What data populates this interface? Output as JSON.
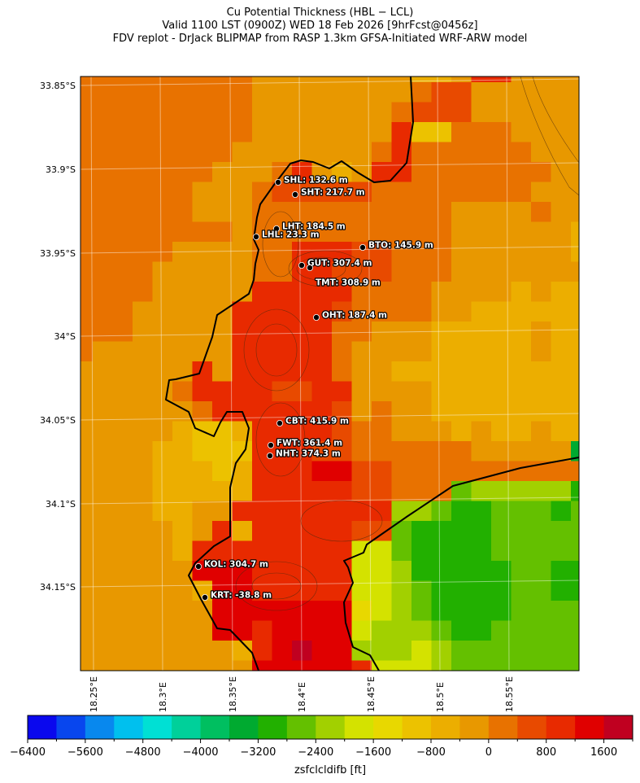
{
  "title": {
    "line1": "Cu Potential Thickness (HBL − LCL)",
    "line2": "Valid 1100 LST (0900Z) WED 18 Feb 2026 [9hrFcst@0456z]",
    "line3": "FDV replot - DrJack BLIPMAP from RASP 1.3km GFSA-Initiated WRF-ARW model"
  },
  "map": {
    "lat_labels": [
      "33.85°S",
      "33.9°S",
      "33.95°S",
      "34°S",
      "34.05°S",
      "34.1°S",
      "34.15°S"
    ],
    "lon_labels": [
      "18.25°E",
      "18.3°E",
      "18.35°E",
      "18.4°E",
      "18.45°E",
      "18.5°E",
      "18.55°E"
    ],
    "stations": [
      {
        "label": "SHL: 132.6 m"
      },
      {
        "label": "SHT: 217.7 m"
      },
      {
        "label": "LHT: 184.5 m"
      },
      {
        "label": "LHL: 23.3 m"
      },
      {
        "label": "BTO: 145.9 m"
      },
      {
        "label": "GUT: 307.4 m"
      },
      {
        "label": "TMT: 308.9 m"
      },
      {
        "label": "OHT: 187.4 m"
      },
      {
        "label": "CBT: 415.9 m"
      },
      {
        "label": "FWT: 361.4 m"
      },
      {
        "label": "NHT: 374.3 m"
      },
      {
        "label": "KOL: 304.7 m"
      },
      {
        "label": "KRT: -38.8 m"
      }
    ],
    "field_ft": [
      [
        0,
        0,
        0,
        0,
        0,
        0,
        0,
        0,
        0,
        -400,
        -400,
        -400,
        -400,
        -400,
        -400,
        -400,
        -400,
        -800,
        -800,
        -400,
        800,
        800,
        -400,
        -400,
        -400,
        -400
      ],
      [
        0,
        0,
        0,
        0,
        0,
        0,
        0,
        0,
        0,
        -400,
        -400,
        -400,
        -400,
        -400,
        -400,
        -400,
        -400,
        0,
        400,
        400,
        -400,
        -400,
        -400,
        -400,
        -400,
        -400
      ],
      [
        0,
        0,
        0,
        0,
        0,
        0,
        0,
        0,
        0,
        -400,
        -400,
        -400,
        -400,
        -400,
        -400,
        -400,
        0,
        400,
        400,
        400,
        -400,
        -400,
        -400,
        -400,
        -400,
        -400
      ],
      [
        0,
        0,
        0,
        0,
        0,
        0,
        0,
        0,
        0,
        -400,
        -400,
        -400,
        -400,
        -400,
        -400,
        -400,
        800,
        -1200,
        -1200,
        0,
        0,
        0,
        -400,
        -400,
        -400,
        -400
      ],
      [
        0,
        0,
        0,
        0,
        0,
        0,
        0,
        0,
        -400,
        -400,
        -400,
        -400,
        -400,
        -400,
        -400,
        0,
        800,
        0,
        0,
        0,
        0,
        0,
        0,
        -400,
        -400,
        -400
      ],
      [
        0,
        0,
        0,
        0,
        0,
        0,
        0,
        -400,
        -400,
        -400,
        0,
        800,
        -400,
        -800,
        -400,
        800,
        800,
        0,
        0,
        0,
        0,
        0,
        0,
        0,
        -400,
        -400
      ],
      [
        0,
        0,
        0,
        0,
        0,
        0,
        -400,
        -400,
        -400,
        0,
        400,
        400,
        400,
        400,
        400,
        0,
        0,
        0,
        0,
        0,
        0,
        0,
        0,
        -400,
        -400,
        -400
      ],
      [
        0,
        0,
        0,
        0,
        0,
        0,
        -400,
        -400,
        -400,
        0,
        0,
        0,
        0,
        0,
        0,
        0,
        0,
        0,
        0,
        -400,
        -400,
        -400,
        -400,
        0,
        -400,
        -400
      ],
      [
        0,
        0,
        0,
        0,
        0,
        0,
        0,
        0,
        -400,
        0,
        0,
        0,
        0,
        0,
        0,
        0,
        0,
        0,
        0,
        -400,
        -400,
        -400,
        -400,
        -400,
        -400,
        -800
      ],
      [
        0,
        0,
        0,
        0,
        0,
        -400,
        -400,
        -400,
        -400,
        0,
        0,
        800,
        800,
        800,
        400,
        400,
        0,
        0,
        0,
        -400,
        -400,
        -400,
        -400,
        -400,
        -400,
        -800
      ],
      [
        0,
        0,
        0,
        0,
        -400,
        -400,
        -400,
        -400,
        -400,
        0,
        0,
        800,
        800,
        400,
        400,
        400,
        0,
        0,
        0,
        -400,
        -400,
        -400,
        -400,
        -400,
        -400,
        -400
      ],
      [
        0,
        0,
        0,
        0,
        -400,
        -400,
        -400,
        -400,
        -400,
        800,
        800,
        800,
        800,
        800,
        0,
        0,
        0,
        0,
        -400,
        -400,
        -400,
        -400,
        -800,
        -400,
        -800,
        -800
      ],
      [
        0,
        0,
        0,
        -400,
        -400,
        -400,
        -400,
        -400,
        800,
        800,
        800,
        800,
        800,
        400,
        0,
        0,
        0,
        0,
        -400,
        -400,
        -800,
        -800,
        -800,
        -800,
        -800,
        -800
      ],
      [
        0,
        0,
        0,
        -400,
        -400,
        -400,
        -400,
        -400,
        800,
        800,
        800,
        800,
        800,
        0,
        0,
        -400,
        -400,
        -400,
        -800,
        -800,
        -800,
        -800,
        -800,
        -400,
        -800,
        -800
      ],
      [
        0,
        -400,
        -400,
        -400,
        -400,
        -400,
        -400,
        -400,
        800,
        800,
        800,
        800,
        800,
        0,
        -400,
        -400,
        -400,
        -400,
        -800,
        -800,
        -800,
        -800,
        -800,
        -400,
        -800,
        -800
      ],
      [
        -400,
        -400,
        -400,
        -400,
        -400,
        -400,
        800,
        -400,
        800,
        800,
        800,
        800,
        800,
        0,
        -400,
        -400,
        -800,
        -800,
        -800,
        -800,
        -800,
        -800,
        -800,
        -800,
        -800,
        -800
      ],
      [
        -400,
        -400,
        -400,
        -400,
        -400,
        0,
        800,
        800,
        800,
        800,
        400,
        400,
        800,
        800,
        -400,
        -400,
        -400,
        -400,
        -800,
        -800,
        -800,
        -800,
        -800,
        -800,
        -800,
        -800
      ],
      [
        -400,
        -400,
        -400,
        -400,
        -400,
        -400,
        0,
        800,
        800,
        800,
        800,
        800,
        800,
        400,
        -400,
        0,
        -400,
        -400,
        -800,
        -800,
        -800,
        -800,
        -800,
        -800,
        -800,
        -800
      ],
      [
        -400,
        -400,
        -400,
        -400,
        -400,
        -800,
        -1200,
        -1200,
        -800,
        800,
        800,
        800,
        800,
        400,
        0,
        0,
        -400,
        -400,
        -400,
        -800,
        -400,
        -800,
        -800,
        -400,
        -800,
        -800
      ],
      [
        -400,
        -400,
        -400,
        -400,
        -800,
        -800,
        -1200,
        -1200,
        -1200,
        800,
        800,
        800,
        400,
        400,
        0,
        0,
        0,
        0,
        0,
        0,
        -400,
        -400,
        -400,
        -400,
        -400,
        -3600
      ],
      [
        -400,
        -400,
        -400,
        -400,
        -800,
        -800,
        -800,
        -1200,
        -800,
        800,
        800,
        800,
        1200,
        1200,
        400,
        400,
        0,
        0,
        0,
        0,
        0,
        0,
        0,
        0,
        0,
        0
      ],
      [
        -400,
        -400,
        -400,
        -400,
        -800,
        -800,
        -800,
        -800,
        -800,
        800,
        800,
        800,
        800,
        800,
        400,
        400,
        0,
        0,
        0,
        -2800,
        -2400,
        -2400,
        -2400,
        -2400,
        -2400,
        -3200
      ],
      [
        -400,
        -400,
        -400,
        -400,
        -800,
        -800,
        -400,
        -400,
        800,
        800,
        800,
        800,
        800,
        800,
        800,
        800,
        -2400,
        -2400,
        -2800,
        -3200,
        -3200,
        -2800,
        -2800,
        -2800,
        -3200,
        -2800
      ],
      [
        -400,
        -400,
        -400,
        -400,
        -400,
        -800,
        -400,
        800,
        -800,
        800,
        800,
        800,
        800,
        800,
        400,
        400,
        -2800,
        -3200,
        -3200,
        -3200,
        -3200,
        -2800,
        -2800,
        -2800,
        -2800,
        -2800
      ],
      [
        -400,
        -400,
        -400,
        -400,
        -400,
        -800,
        800,
        800,
        800,
        800,
        800,
        800,
        800,
        800,
        -2000,
        -2000,
        -2800,
        -3200,
        -3200,
        -3200,
        -3200,
        -2800,
        -2800,
        -2800,
        -2800,
        -2800
      ],
      [
        -400,
        -400,
        -400,
        -400,
        -400,
        -400,
        1200,
        1200,
        1200,
        800,
        800,
        800,
        800,
        800,
        -2000,
        -2000,
        -2400,
        -3200,
        -3200,
        -3200,
        -3200,
        -3200,
        -2800,
        -2800,
        -3200,
        -3200
      ],
      [
        -400,
        -400,
        -400,
        -400,
        -400,
        -400,
        -800,
        1200,
        1200,
        800,
        800,
        800,
        800,
        800,
        -2000,
        -2000,
        -2400,
        -2800,
        -3200,
        -3200,
        -3200,
        -3200,
        -2800,
        -2800,
        -3200,
        -3200
      ],
      [
        -400,
        -400,
        -400,
        -400,
        -400,
        -400,
        -400,
        1200,
        1200,
        1200,
        1200,
        1200,
        1200,
        1200,
        -1600,
        -2000,
        -2400,
        -2800,
        -3200,
        -3200,
        -3200,
        -3200,
        -2800,
        -2800,
        -2800,
        -2800
      ],
      [
        -400,
        -400,
        -400,
        -400,
        -400,
        -400,
        -400,
        1200,
        1200,
        800,
        1200,
        1200,
        1200,
        1200,
        -2000,
        -2400,
        -2400,
        -2400,
        -2800,
        -3200,
        -3200,
        -2800,
        -2800,
        -2800,
        -2800,
        -2800
      ],
      [
        -400,
        -400,
        -400,
        -400,
        -400,
        -400,
        -400,
        -400,
        -800,
        800,
        1200,
        1600,
        1200,
        1200,
        -2400,
        -2400,
        -2400,
        -2000,
        -2400,
        -2800,
        -2800,
        -2800,
        -2800,
        -2800,
        -2800,
        -2800
      ],
      [
        -400,
        -400,
        -400,
        -400,
        -400,
        -400,
        -400,
        -400,
        -400,
        1200,
        1200,
        1200,
        1200,
        1200,
        800,
        -2000,
        -2000,
        -2000,
        -2400,
        -2800,
        -2800,
        -2800,
        -2800,
        -2800,
        -2800,
        -2800
      ]
    ]
  },
  "colorbar": {
    "label": "zsfclcldifb [ft]",
    "min": -6400,
    "max": 2000,
    "step": 400,
    "tick_labels": [
      "−6400",
      "−5600",
      "−4800",
      "−4000",
      "−3200",
      "−2400",
      "−1600",
      "−800",
      "0",
      "800",
      "1600"
    ],
    "colors": [
      "#0a08ee",
      "#0846ee",
      "#0888ee",
      "#00c0ee",
      "#00e0d4",
      "#00d09a",
      "#00bf60",
      "#00aa30",
      "#22b000",
      "#64c000",
      "#a2d000",
      "#d4e200",
      "#e8d800",
      "#ecc200",
      "#ecae00",
      "#e89800",
      "#e87200",
      "#e84a00",
      "#e82a00",
      "#e00000",
      "#c00020"
    ]
  }
}
